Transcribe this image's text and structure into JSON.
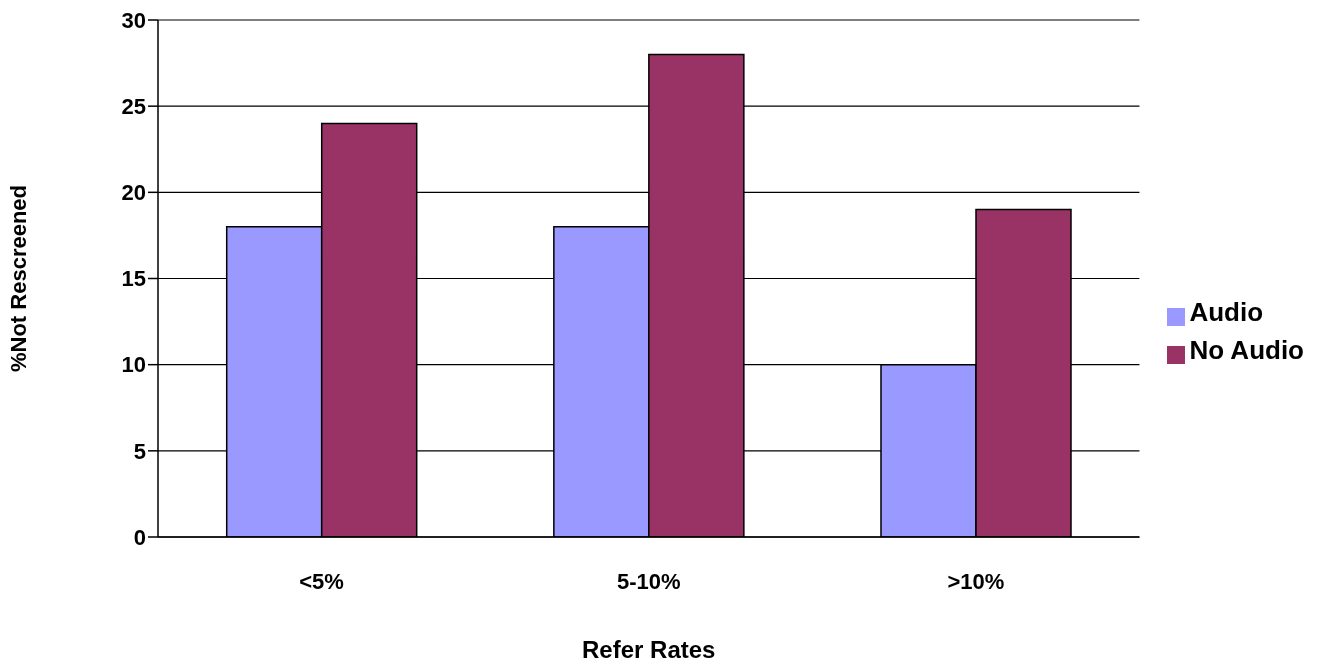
{
  "chart_data": {
    "type": "bar",
    "xlabel": "Refer Rates",
    "ylabel": "%Not Rescreened",
    "categories": [
      "<5%",
      "5-10%",
      ">10%"
    ],
    "series": [
      {
        "name": "Audio",
        "color": "#9999ff",
        "values": [
          18,
          18,
          10
        ]
      },
      {
        "name": "No Audio",
        "color": "#993366",
        "values": [
          24,
          28,
          19
        ]
      }
    ],
    "ylim": [
      0,
      30
    ],
    "yticks": [
      0,
      5,
      10,
      15,
      20,
      25,
      30
    ],
    "grid": "y",
    "legend": "right"
  }
}
